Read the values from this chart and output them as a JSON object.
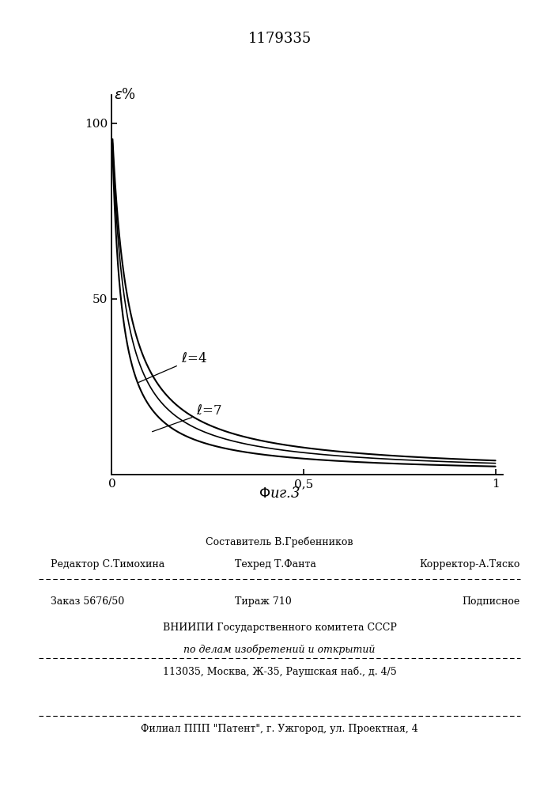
{
  "title": "1179335",
  "fig_label": "Φиг.3",
  "ylabel": "ε%",
  "curve1_label": "ℓ=4",
  "curve2_label": "ℓ=7",
  "curve1_ell": 4,
  "curve2_ell": 7,
  "line_color": "#000000",
  "bg_color": "#ffffff",
  "footer_sestavitel": "Составитель В.Гребенников",
  "footer_editor": "Редактор С.Тимохина",
  "footer_tekhred": "Техред Т.Фанта",
  "footer_korrektor": "Корректор-А.Тяско",
  "footer_zakaz": "Заказ 5676/50",
  "footer_tirazh": "Тираж 710",
  "footer_podpisnoe": "Подписное",
  "footer_vniipи": "ВНИИПИ Государственного комитета СССР",
  "footer_po_delam": "по делам изобретений и открытий",
  "footer_address": "113035, Москва, Ж-35, Раушская наб., д. 4/5",
  "footer_filial": "Филиал ППП \"Патент\", г. Ужгород, ул. Проектная, 4"
}
